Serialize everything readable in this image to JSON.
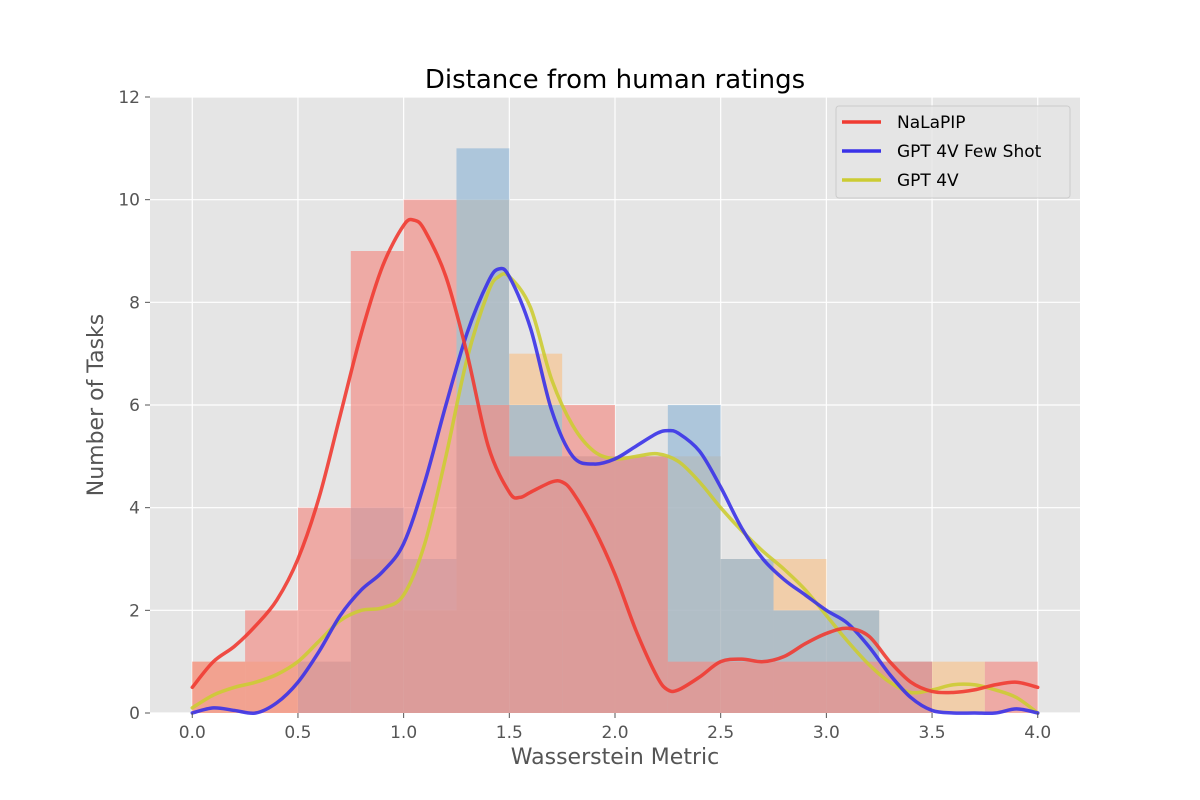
{
  "chart_data": {
    "type": "histogram+kde",
    "title": "Distance from human ratings",
    "xlabel": "Wasserstein Metric",
    "ylabel": "Number of Tasks",
    "xlim": [
      -0.2,
      4.2
    ],
    "ylim": [
      0,
      12
    ],
    "xticks": [
      "0.0",
      "0.5",
      "1.0",
      "1.5",
      "2.0",
      "2.5",
      "3.0",
      "3.5",
      "4.0"
    ],
    "yticks": [
      "0",
      "2",
      "4",
      "6",
      "8",
      "10",
      "12"
    ],
    "grid": true,
    "legend_position": "upper-right",
    "bin_edges": [
      0.0,
      0.25,
      0.5,
      0.75,
      1.0,
      1.25,
      1.5,
      1.75,
      2.0,
      2.25,
      2.5,
      2.75,
      3.0,
      3.25,
      3.5,
      3.75,
      4.0
    ],
    "series": [
      {
        "name": "NaLaPIP",
        "line_color": "#f03b32",
        "bar_color": "#f28b82",
        "counts": [
          1,
          2,
          4,
          9,
          10,
          6,
          5,
          6,
          5,
          1,
          1,
          1,
          1,
          1,
          0,
          1
        ],
        "kde": [
          [
            0,
            0.5
          ],
          [
            0.1,
            1.0
          ],
          [
            0.2,
            1.3
          ],
          [
            0.3,
            1.7
          ],
          [
            0.4,
            2.2
          ],
          [
            0.5,
            3.0
          ],
          [
            0.6,
            4.2
          ],
          [
            0.7,
            5.8
          ],
          [
            0.8,
            7.4
          ],
          [
            0.9,
            8.7
          ],
          [
            1.0,
            9.5
          ],
          [
            1.05,
            9.6
          ],
          [
            1.1,
            9.4
          ],
          [
            1.2,
            8.5
          ],
          [
            1.3,
            7.0
          ],
          [
            1.4,
            5.2
          ],
          [
            1.5,
            4.3
          ],
          [
            1.55,
            4.2
          ],
          [
            1.6,
            4.3
          ],
          [
            1.7,
            4.5
          ],
          [
            1.75,
            4.5
          ],
          [
            1.8,
            4.3
          ],
          [
            1.9,
            3.6
          ],
          [
            2.0,
            2.7
          ],
          [
            2.1,
            1.6
          ],
          [
            2.2,
            0.7
          ],
          [
            2.25,
            0.45
          ],
          [
            2.3,
            0.45
          ],
          [
            2.4,
            0.7
          ],
          [
            2.5,
            1.0
          ],
          [
            2.6,
            1.05
          ],
          [
            2.7,
            1.0
          ],
          [
            2.8,
            1.1
          ],
          [
            2.9,
            1.35
          ],
          [
            3.0,
            1.55
          ],
          [
            3.1,
            1.65
          ],
          [
            3.2,
            1.5
          ],
          [
            3.3,
            1.0
          ],
          [
            3.4,
            0.6
          ],
          [
            3.5,
            0.42
          ],
          [
            3.6,
            0.4
          ],
          [
            3.7,
            0.45
          ],
          [
            3.8,
            0.55
          ],
          [
            3.9,
            0.6
          ],
          [
            4.0,
            0.5
          ]
        ]
      },
      {
        "name": "GPT 4V Few Shot",
        "line_color": "#3a32e8",
        "bar_color": "#8fb5d6",
        "counts": [
          0,
          0,
          1,
          4,
          3,
          11,
          6,
          5,
          5,
          6,
          3,
          2,
          2,
          1,
          0,
          0
        ],
        "kde": [
          [
            0,
            0
          ],
          [
            0.1,
            0.1
          ],
          [
            0.2,
            0.05
          ],
          [
            0.3,
            0.0
          ],
          [
            0.4,
            0.2
          ],
          [
            0.5,
            0.6
          ],
          [
            0.6,
            1.2
          ],
          [
            0.7,
            1.9
          ],
          [
            0.8,
            2.4
          ],
          [
            0.9,
            2.75
          ],
          [
            1.0,
            3.3
          ],
          [
            1.1,
            4.5
          ],
          [
            1.2,
            6.0
          ],
          [
            1.3,
            7.4
          ],
          [
            1.4,
            8.4
          ],
          [
            1.45,
            8.65
          ],
          [
            1.5,
            8.5
          ],
          [
            1.6,
            7.5
          ],
          [
            1.7,
            5.9
          ],
          [
            1.8,
            5.0
          ],
          [
            1.9,
            4.85
          ],
          [
            2.0,
            4.95
          ],
          [
            2.1,
            5.2
          ],
          [
            2.2,
            5.45
          ],
          [
            2.25,
            5.5
          ],
          [
            2.3,
            5.45
          ],
          [
            2.4,
            5.1
          ],
          [
            2.5,
            4.4
          ],
          [
            2.6,
            3.6
          ],
          [
            2.7,
            3.0
          ],
          [
            2.8,
            2.6
          ],
          [
            2.9,
            2.3
          ],
          [
            3.0,
            2.0
          ],
          [
            3.1,
            1.75
          ],
          [
            3.2,
            1.3
          ],
          [
            3.3,
            0.75
          ],
          [
            3.4,
            0.3
          ],
          [
            3.5,
            0.05
          ],
          [
            3.6,
            0.0
          ],
          [
            3.7,
            0.0
          ],
          [
            3.8,
            0.0
          ],
          [
            3.9,
            0.08
          ],
          [
            4.0,
            0.0
          ]
        ]
      },
      {
        "name": "GPT 4V",
        "line_color": "#cccc33",
        "bar_color": "#f7c28b",
        "counts": [
          1,
          1,
          1,
          3,
          2,
          10,
          7,
          5,
          5,
          5,
          3,
          3,
          2,
          1,
          1,
          0
        ],
        "kde": [
          [
            0,
            0.1
          ],
          [
            0.1,
            0.35
          ],
          [
            0.2,
            0.5
          ],
          [
            0.3,
            0.6
          ],
          [
            0.4,
            0.75
          ],
          [
            0.5,
            1.0
          ],
          [
            0.6,
            1.4
          ],
          [
            0.7,
            1.8
          ],
          [
            0.8,
            2.0
          ],
          [
            0.9,
            2.05
          ],
          [
            1.0,
            2.3
          ],
          [
            1.1,
            3.3
          ],
          [
            1.2,
            5.0
          ],
          [
            1.3,
            6.9
          ],
          [
            1.4,
            8.2
          ],
          [
            1.45,
            8.5
          ],
          [
            1.5,
            8.5
          ],
          [
            1.6,
            7.9
          ],
          [
            1.7,
            6.5
          ],
          [
            1.8,
            5.6
          ],
          [
            1.9,
            5.1
          ],
          [
            2.0,
            4.95
          ],
          [
            2.1,
            5.0
          ],
          [
            2.2,
            5.05
          ],
          [
            2.3,
            4.9
          ],
          [
            2.4,
            4.5
          ],
          [
            2.5,
            4.0
          ],
          [
            2.6,
            3.55
          ],
          [
            2.7,
            3.15
          ],
          [
            2.8,
            2.8
          ],
          [
            2.9,
            2.4
          ],
          [
            3.0,
            1.9
          ],
          [
            3.1,
            1.4
          ],
          [
            3.2,
            0.95
          ],
          [
            3.3,
            0.6
          ],
          [
            3.4,
            0.4
          ],
          [
            3.5,
            0.45
          ],
          [
            3.6,
            0.55
          ],
          [
            3.7,
            0.55
          ],
          [
            3.8,
            0.45
          ],
          [
            3.9,
            0.3
          ],
          [
            4.0,
            0.0
          ]
        ]
      }
    ]
  }
}
